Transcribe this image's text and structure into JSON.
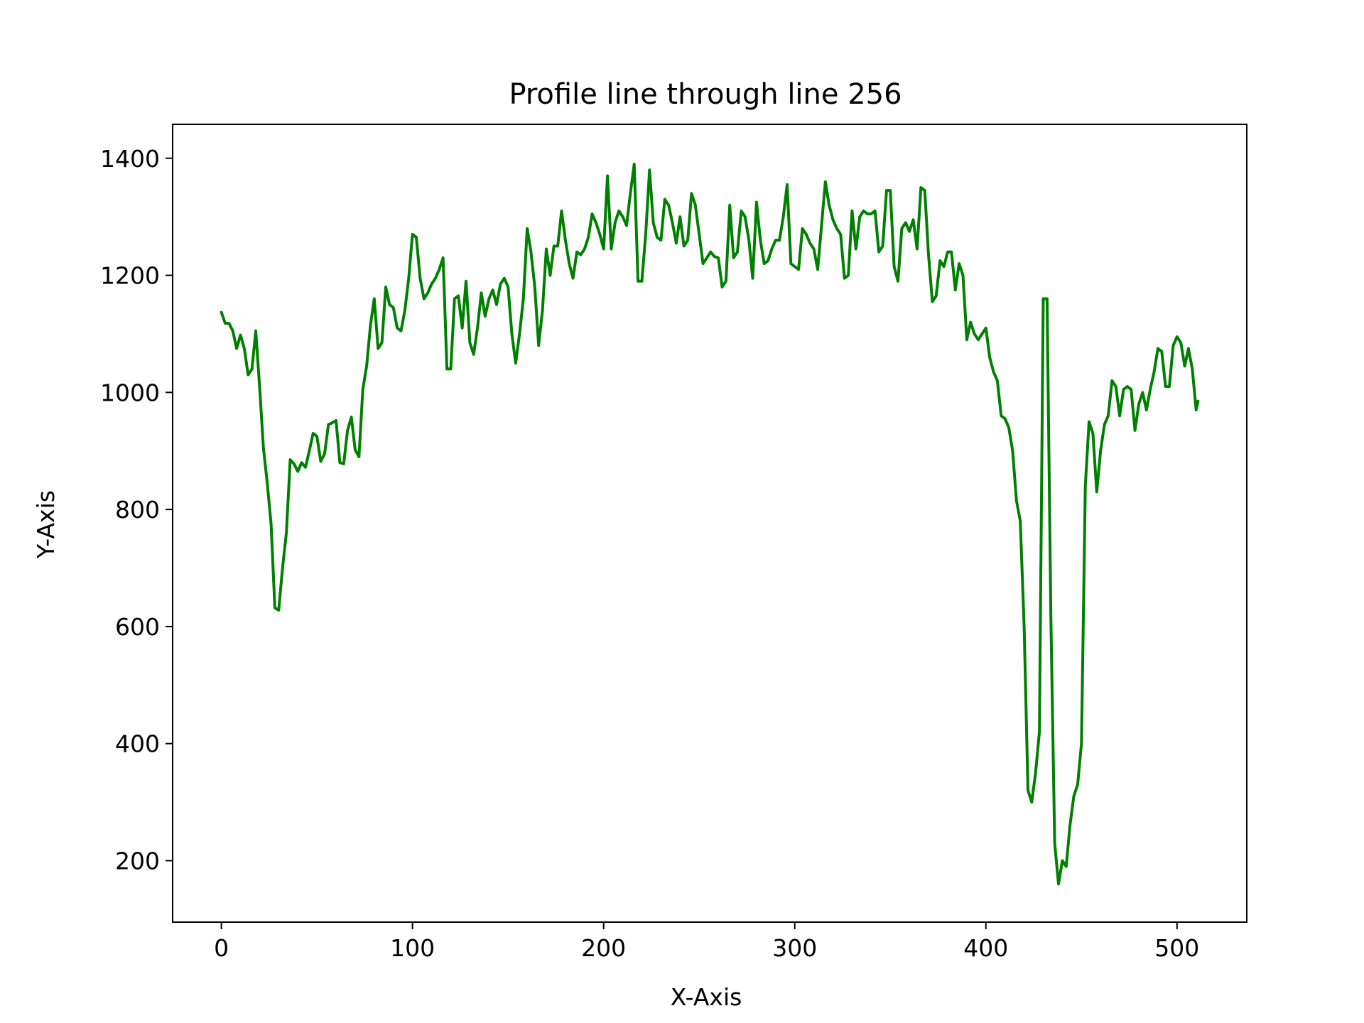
{
  "chart_data": {
    "type": "line",
    "title": "Profile line through line 256",
    "xlabel": "X-Axis",
    "ylabel": "Y-Axis",
    "xlim": [
      -25.5,
      536.5
    ],
    "ylim": [
      95,
      1458
    ],
    "xticks": [
      0,
      100,
      200,
      300,
      400,
      500
    ],
    "yticks": [
      200,
      400,
      600,
      800,
      1000,
      1200,
      1400
    ],
    "xtick_labels": [
      "0",
      "100",
      "200",
      "300",
      "400",
      "500"
    ],
    "ytick_labels": [
      "200",
      "400",
      "600",
      "800",
      "1000",
      "1200",
      "1400"
    ],
    "grid": false,
    "legend": "none",
    "series": [
      {
        "color": "#008000",
        "x": [
          0,
          2,
          4,
          6,
          8,
          10,
          12,
          14,
          16,
          18,
          20,
          22,
          24,
          26,
          28,
          30,
          32,
          34,
          36,
          38,
          40,
          42,
          44,
          46,
          48,
          50,
          52,
          54,
          56,
          58,
          60,
          62,
          64,
          66,
          68,
          70,
          72,
          74,
          76,
          78,
          80,
          82,
          84,
          86,
          88,
          90,
          92,
          94,
          96,
          98,
          100,
          102,
          104,
          106,
          108,
          110,
          112,
          114,
          116,
          118,
          120,
          122,
          124,
          126,
          128,
          130,
          132,
          134,
          136,
          138,
          140,
          142,
          144,
          146,
          148,
          150,
          152,
          154,
          156,
          158,
          160,
          162,
          164,
          166,
          168,
          170,
          172,
          174,
          176,
          178,
          180,
          182,
          184,
          186,
          188,
          190,
          192,
          194,
          196,
          198,
          200,
          202,
          204,
          206,
          208,
          210,
          212,
          214,
          216,
          218,
          220,
          222,
          224,
          226,
          228,
          230,
          232,
          234,
          236,
          238,
          240,
          242,
          244,
          246,
          248,
          250,
          252,
          254,
          256,
          258,
          260,
          262,
          264,
          266,
          268,
          270,
          272,
          274,
          276,
          278,
          280,
          282,
          284,
          286,
          288,
          290,
          292,
          294,
          296,
          298,
          300,
          302,
          304,
          306,
          308,
          310,
          312,
          314,
          316,
          318,
          320,
          322,
          324,
          326,
          328,
          330,
          332,
          334,
          336,
          338,
          340,
          342,
          344,
          346,
          348,
          350,
          352,
          354,
          356,
          358,
          360,
          362,
          364,
          366,
          368,
          370,
          372,
          374,
          376,
          378,
          380,
          382,
          384,
          386,
          388,
          390,
          392,
          394,
          396,
          398,
          400,
          402,
          404,
          406,
          408,
          410,
          412,
          414,
          416,
          418,
          420,
          422,
          424,
          426,
          428,
          430,
          432,
          434,
          436,
          438,
          440,
          442,
          444,
          446,
          448,
          450,
          452,
          454,
          456,
          458,
          460,
          462,
          464,
          466,
          468,
          470,
          472,
          474,
          476,
          478,
          480,
          482,
          484,
          486,
          488,
          490,
          492,
          494,
          496,
          498,
          500,
          502,
          504,
          506,
          508,
          510,
          511
        ],
        "y": [
          1137,
          1118,
          1118,
          1105,
          1075,
          1098,
          1075,
          1030,
          1040,
          1105,
          1010,
          905,
          845,
          775,
          632,
          628,
          700,
          760,
          885,
          878,
          865,
          880,
          872,
          900,
          930,
          925,
          882,
          895,
          945,
          948,
          952,
          880,
          878,
          935,
          958,
          902,
          890,
          1005,
          1045,
          1115,
          1160,
          1075,
          1085,
          1180,
          1150,
          1145,
          1110,
          1105,
          1140,
          1195,
          1270,
          1265,
          1195,
          1160,
          1170,
          1185,
          1195,
          1210,
          1230,
          1040,
          1040,
          1160,
          1165,
          1110,
          1190,
          1085,
          1065,
          1110,
          1170,
          1130,
          1160,
          1175,
          1150,
          1185,
          1195,
          1180,
          1100,
          1050,
          1100,
          1160,
          1280,
          1240,
          1180,
          1080,
          1140,
          1245,
          1200,
          1250,
          1250,
          1310,
          1260,
          1220,
          1195,
          1240,
          1235,
          1245,
          1265,
          1305,
          1290,
          1270,
          1245,
          1370,
          1245,
          1290,
          1310,
          1300,
          1285,
          1340,
          1390,
          1190,
          1190,
          1270,
          1380,
          1290,
          1265,
          1260,
          1330,
          1320,
          1290,
          1255,
          1300,
          1250,
          1260,
          1340,
          1320,
          1270,
          1220,
          1230,
          1240,
          1232,
          1230,
          1180,
          1190,
          1320,
          1230,
          1240,
          1310,
          1300,
          1260,
          1195,
          1325,
          1260,
          1220,
          1225,
          1245,
          1260,
          1260,
          1300,
          1355,
          1220,
          1215,
          1210,
          1280,
          1270,
          1255,
          1245,
          1210,
          1285,
          1360,
          1320,
          1295,
          1280,
          1270,
          1195,
          1200,
          1310,
          1245,
          1300,
          1310,
          1305,
          1305,
          1310,
          1240,
          1250,
          1345,
          1345,
          1215,
          1190,
          1280,
          1290,
          1275,
          1295,
          1245,
          1350,
          1345,
          1235,
          1155,
          1165,
          1225,
          1215,
          1240,
          1240,
          1175,
          1220,
          1200,
          1090,
          1120,
          1100,
          1090,
          1100,
          1110,
          1060,
          1035,
          1020,
          960,
          955,
          940,
          900,
          815,
          780,
          600,
          320,
          300,
          350,
          420,
          1160,
          1160,
          620,
          230,
          160,
          200,
          190,
          260,
          310,
          330,
          400,
          840,
          950,
          930,
          830,
          900,
          945,
          960,
          1020,
          1010,
          960,
          1005,
          1010,
          1005,
          935,
          980,
          1000,
          970,
          1005,
          1035,
          1075,
          1070,
          1010,
          1010,
          1080,
          1095,
          1085,
          1045,
          1075,
          1040,
          970,
          985
        ]
      }
    ]
  }
}
